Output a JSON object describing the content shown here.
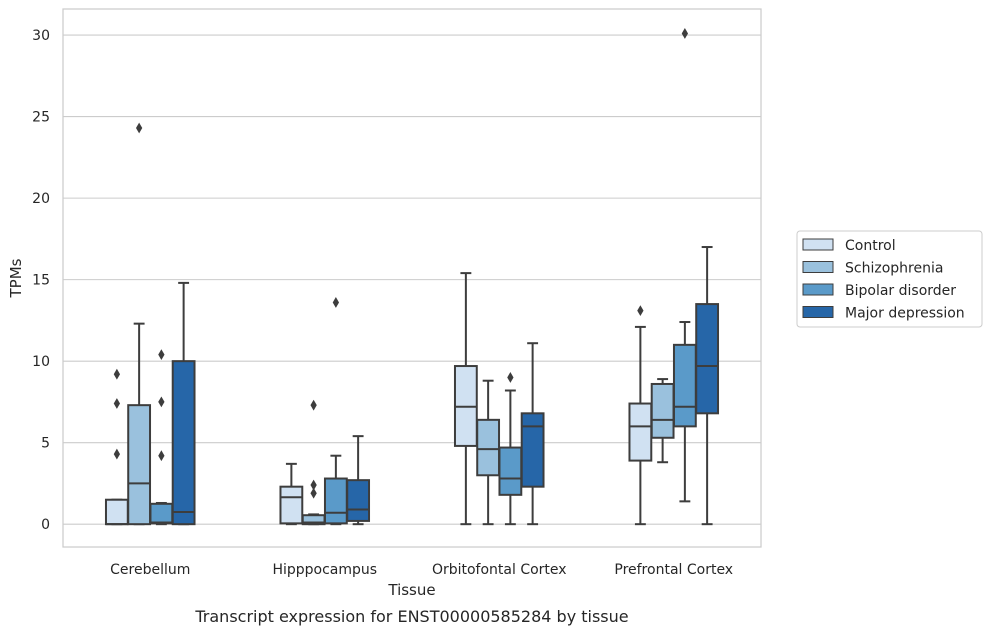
{
  "chart_data": {
    "type": "box",
    "xlabel": "Tissue",
    "ylabel": "TPMs",
    "caption": "Transcript expression for ENST00000585284 by tissue",
    "ylim": [
      -1.4,
      31.6
    ],
    "yticks": [
      0,
      5,
      10,
      15,
      20,
      25,
      30
    ],
    "categories": [
      "Cerebellum",
      "Hipppocampus",
      "Orbitofontal Cortex",
      "Prefrontal Cortex"
    ],
    "legend_position": "right",
    "grid": "horizontal",
    "series": [
      {
        "name": "Control",
        "color": "#d0e1f2",
        "boxes": [
          {
            "whislo": 0,
            "q1": 0,
            "med": 0,
            "q3": 1.5,
            "whishi": 1.5,
            "fliers": [
              4.3,
              7.4,
              9.2
            ]
          },
          {
            "whislo": 0,
            "q1": 0.05,
            "med": 1.65,
            "q3": 2.3,
            "whishi": 3.7,
            "fliers": []
          },
          {
            "whislo": 0,
            "q1": 4.8,
            "med": 7.2,
            "q3": 9.7,
            "whishi": 15.4,
            "fliers": []
          },
          {
            "whislo": 0,
            "q1": 3.9,
            "med": 6.0,
            "q3": 7.4,
            "whishi": 12.1,
            "fliers": [
              13.1
            ]
          }
        ]
      },
      {
        "name": "Schizophrenia",
        "color": "#9ac1dd",
        "boxes": [
          {
            "whislo": 0,
            "q1": 0,
            "med": 2.5,
            "q3": 7.3,
            "whishi": 12.3,
            "fliers": [
              24.3
            ]
          },
          {
            "whislo": 0,
            "q1": 0,
            "med": 0.1,
            "q3": 0.55,
            "whishi": 0.6,
            "fliers": [
              1.9,
              2.4,
              7.3
            ]
          },
          {
            "whislo": 0,
            "q1": 3.0,
            "med": 4.6,
            "q3": 6.4,
            "whishi": 8.8,
            "fliers": []
          },
          {
            "whislo": 3.8,
            "q1": 5.3,
            "med": 6.4,
            "q3": 8.6,
            "whishi": 8.9,
            "fliers": []
          }
        ]
      },
      {
        "name": "Bipolar disorder",
        "color": "#5a9ac9",
        "boxes": [
          {
            "whislo": 0,
            "q1": 0.05,
            "med": 0.1,
            "q3": 1.25,
            "whishi": 1.3,
            "fliers": [
              4.2,
              7.5,
              10.4
            ]
          },
          {
            "whislo": 0,
            "q1": 0.05,
            "med": 0.7,
            "q3": 2.8,
            "whishi": 4.2,
            "fliers": [
              13.6
            ]
          },
          {
            "whislo": 0,
            "q1": 1.8,
            "med": 2.8,
            "q3": 4.7,
            "whishi": 8.2,
            "fliers": [
              9.0
            ]
          },
          {
            "whislo": 1.4,
            "q1": 6.0,
            "med": 7.2,
            "q3": 11.0,
            "whishi": 12.4,
            "fliers": [
              30.1
            ]
          }
        ]
      },
      {
        "name": "Major depression",
        "color": "#2666a8",
        "boxes": [
          {
            "whislo": 0,
            "q1": 0,
            "med": 0.75,
            "q3": 10.0,
            "whishi": 14.8,
            "fliers": []
          },
          {
            "whislo": 0,
            "q1": 0.2,
            "med": 0.9,
            "q3": 2.7,
            "whishi": 5.4,
            "fliers": []
          },
          {
            "whislo": 0,
            "q1": 2.3,
            "med": 6.0,
            "q3": 6.8,
            "whishi": 11.1,
            "fliers": []
          },
          {
            "whislo": 0,
            "q1": 6.8,
            "med": 9.7,
            "q3": 13.5,
            "whishi": 17.0,
            "fliers": []
          }
        ]
      }
    ]
  }
}
